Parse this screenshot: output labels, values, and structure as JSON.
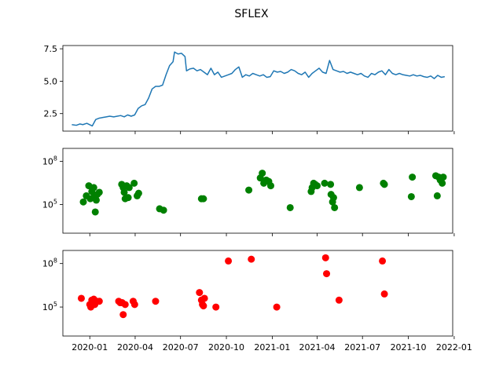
{
  "chart_data": {
    "title": "SFLEX",
    "type": "multi-panel",
    "x_axis": {
      "type": "date",
      "range": [
        "2019-11-08",
        "2021-12-29"
      ],
      "tick_labels": [
        "2020-01",
        "2020-04",
        "2020-07",
        "2020-10",
        "2021-01",
        "2021-04",
        "2021-07",
        "2021-10",
        "2022-01"
      ],
      "tick_dates": [
        "2020-01-01",
        "2020-04-01",
        "2020-07-01",
        "2020-10-01",
        "2021-01-01",
        "2021-04-01",
        "2021-07-01",
        "2021-10-01",
        "2022-01-01"
      ]
    },
    "panels": [
      {
        "type": "line",
        "color": "#1f77b4",
        "ylim": [
          1.15,
          7.75
        ],
        "yticks": [
          2.5,
          5.0,
          7.5
        ],
        "ytick_labels": [
          "2.5",
          "5.0",
          "7.5"
        ],
        "series": [
          {
            "x": [
              "2019-11-26",
              "2019-12-05",
              "2019-12-12",
              "2019-12-18",
              "2019-12-26",
              "2020-01-06",
              "2020-01-13",
              "2020-01-20",
              "2020-01-27",
              "2020-02-03",
              "2020-02-10",
              "2020-02-18",
              "2020-02-25",
              "2020-03-03",
              "2020-03-10",
              "2020-03-17",
              "2020-03-24",
              "2020-03-31",
              "2020-04-07",
              "2020-04-14",
              "2020-04-21",
              "2020-04-28",
              "2020-05-05",
              "2020-05-12",
              "2020-05-19",
              "2020-05-26",
              "2020-06-02",
              "2020-06-09",
              "2020-06-16",
              "2020-06-19",
              "2020-06-26",
              "2020-07-03",
              "2020-07-10",
              "2020-07-13",
              "2020-07-20",
              "2020-07-27",
              "2020-08-03",
              "2020-08-10",
              "2020-08-17",
              "2020-08-24",
              "2020-08-31",
              "2020-09-07",
              "2020-09-14",
              "2020-09-21",
              "2020-09-28",
              "2020-10-05",
              "2020-10-12",
              "2020-10-19",
              "2020-10-26",
              "2020-11-02",
              "2020-11-09",
              "2020-11-16",
              "2020-11-23",
              "2020-11-30",
              "2020-12-07",
              "2020-12-14",
              "2020-12-21",
              "2020-12-28",
              "2021-01-04",
              "2021-01-11",
              "2021-01-18",
              "2021-01-25",
              "2021-02-01",
              "2021-02-08",
              "2021-02-15",
              "2021-02-22",
              "2021-03-01",
              "2021-03-08",
              "2021-03-15",
              "2021-03-22",
              "2021-03-29",
              "2021-04-05",
              "2021-04-12",
              "2021-04-19",
              "2021-04-26",
              "2021-05-03",
              "2021-05-10",
              "2021-05-17",
              "2021-05-24",
              "2021-05-31",
              "2021-06-07",
              "2021-06-14",
              "2021-06-21",
              "2021-06-28",
              "2021-07-05",
              "2021-07-12",
              "2021-07-19",
              "2021-07-26",
              "2021-08-02",
              "2021-08-09",
              "2021-08-16",
              "2021-08-23",
              "2021-08-30",
              "2021-09-06",
              "2021-09-13",
              "2021-09-20",
              "2021-09-27",
              "2021-10-04",
              "2021-10-11",
              "2021-10-18",
              "2021-10-25",
              "2021-11-01",
              "2021-11-08",
              "2021-11-15",
              "2021-11-22",
              "2021-11-29",
              "2021-12-06",
              "2021-12-13"
            ],
            "y": [
              1.65,
              1.6,
              1.7,
              1.65,
              1.75,
              1.55,
              2.05,
              2.15,
              2.2,
              2.25,
              2.3,
              2.25,
              2.3,
              2.35,
              2.25,
              2.4,
              2.3,
              2.4,
              2.9,
              3.1,
              3.2,
              3.7,
              4.4,
              4.6,
              4.6,
              4.7,
              5.5,
              6.2,
              6.5,
              7.25,
              7.1,
              7.15,
              6.9,
              5.8,
              5.95,
              6.0,
              5.8,
              5.9,
              5.7,
              5.5,
              6.0,
              5.5,
              5.7,
              5.3,
              5.4,
              5.5,
              5.6,
              5.9,
              6.1,
              5.3,
              5.5,
              5.4,
              5.6,
              5.5,
              5.4,
              5.5,
              5.3,
              5.35,
              5.8,
              5.7,
              5.75,
              5.6,
              5.7,
              5.9,
              5.8,
              5.6,
              5.5,
              5.7,
              5.3,
              5.6,
              5.8,
              6.0,
              5.7,
              5.6,
              6.6,
              5.9,
              5.8,
              5.7,
              5.75,
              5.6,
              5.7,
              5.6,
              5.5,
              5.6,
              5.4,
              5.3,
              5.6,
              5.5,
              5.7,
              5.8,
              5.5,
              5.9,
              5.6,
              5.5,
              5.6,
              5.5,
              5.45,
              5.4,
              5.5,
              5.4,
              5.45,
              5.35,
              5.3,
              5.4,
              5.2,
              5.45,
              5.3,
              5.35
            ]
          }
        ]
      },
      {
        "type": "scatter",
        "color": "#008000",
        "yscale": "log",
        "ylim": [
          1000,
          800000000
        ],
        "yticks": [
          100000,
          100000000
        ],
        "ytick_labels": [
          "10^5",
          "10^8"
        ],
        "series": [
          {
            "x": [
              "2019-12-19",
              "2019-12-25",
              "2019-12-30",
              "2020-01-02",
              "2020-01-05",
              "2020-01-08",
              "2020-01-09",
              "2020-01-12",
              "2020-01-14",
              "2020-01-16",
              "2020-01-20",
              "2020-03-05",
              "2020-03-08",
              "2020-03-10",
              "2020-03-12",
              "2020-03-15",
              "2020-03-18",
              "2020-03-20",
              "2020-03-30",
              "2020-04-05",
              "2020-04-08",
              "2020-05-20",
              "2020-05-28",
              "2020-08-12",
              "2020-08-16",
              "2020-11-15",
              "2020-12-08",
              "2020-12-12",
              "2020-12-15",
              "2020-12-20",
              "2020-12-25",
              "2020-12-29",
              "2021-02-06",
              "2021-03-20",
              "2021-03-22",
              "2021-03-25",
              "2021-03-28",
              "2021-04-01",
              "2021-04-16",
              "2021-04-28",
              "2021-04-29",
              "2021-05-02",
              "2021-05-04",
              "2021-05-06",
              "2021-06-25",
              "2021-08-12",
              "2021-08-14",
              "2021-10-07",
              "2021-10-09",
              "2021-11-25",
              "2021-11-28",
              "2021-12-01",
              "2021-12-04",
              "2021-12-08",
              "2021-12-10"
            ],
            "y": [
              150000,
              400000,
              2000000,
              250000,
              800000,
              300000,
              1500000,
              30000,
              200000,
              500000,
              700000,
              2500000,
              1500000,
              700000,
              250000,
              2000000,
              300000,
              1500000,
              3000000,
              400000,
              600000,
              50000,
              40000,
              250000,
              250000,
              1000000,
              7000000,
              15000000,
              3000000,
              5000000,
              4000000,
              2000000,
              60000,
              800000,
              1500000,
              3000000,
              2500000,
              2000000,
              3000000,
              2500000,
              500000,
              150000,
              300000,
              60000,
              1500000,
              3000000,
              2500000,
              350000,
              8000000,
              10000000,
              400000,
              8000000,
              5000000,
              3000000,
              8000000
            ]
          }
        ]
      },
      {
        "type": "scatter",
        "color": "#ff0000",
        "yscale": "log",
        "ylim": [
          1000,
          800000000
        ],
        "yticks": [
          100000,
          100000000
        ],
        "ytick_labels": [
          "10^5",
          "10^8"
        ],
        "series": [
          {
            "x": [
              "2019-12-15",
              "2020-01-01",
              "2020-01-03",
              "2020-01-05",
              "2020-01-07",
              "2020-01-09",
              "2020-01-11",
              "2020-01-15",
              "2020-01-20",
              "2020-02-28",
              "2020-03-02",
              "2020-03-06",
              "2020-03-08",
              "2020-03-12",
              "2020-03-28",
              "2020-03-31",
              "2020-05-12",
              "2020-08-08",
              "2020-08-12",
              "2020-08-14",
              "2020-08-16",
              "2020-08-18",
              "2020-09-10",
              "2020-10-05",
              "2020-11-20",
              "2021-01-10",
              "2021-04-18",
              "2021-04-20",
              "2021-05-15",
              "2021-08-10",
              "2021-08-14"
            ],
            "y": [
              400000,
              150000,
              100000,
              300000,
              200000,
              350000,
              150000,
              250000,
              250000,
              250000,
              200000,
              200000,
              30000,
              150000,
              250000,
              150000,
              250000,
              1000000,
              300000,
              150000,
              120000,
              400000,
              100000,
              150000000,
              200000000,
              100000,
              250000000,
              20000000,
              300000,
              150000000,
              800000
            ]
          }
        ]
      }
    ]
  }
}
